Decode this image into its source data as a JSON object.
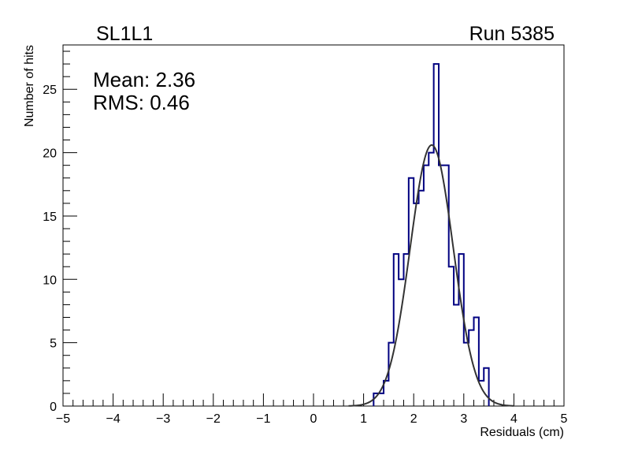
{
  "chart_data": {
    "type": "histogram",
    "title_left": "SL1L1",
    "title_right": "Run 5385",
    "xlabel": "Residuals (cm)",
    "ylabel": "Number of hits",
    "xlim": [
      -5,
      5
    ],
    "ylim": [
      0,
      28.5
    ],
    "xticks": [
      -5,
      -4,
      -3,
      -2,
      -1,
      0,
      1,
      2,
      3,
      4,
      5
    ],
    "yticks": [
      0,
      5,
      10,
      15,
      20,
      25
    ],
    "stats": {
      "mean_text": "Mean: 2.36",
      "rms_text": "RMS:  0.46"
    },
    "bin_width": 0.1,
    "bins_x_start": [
      1.2,
      1.3,
      1.4,
      1.5,
      1.6,
      1.7,
      1.8,
      1.9,
      2.0,
      2.1,
      2.2,
      2.3,
      2.4,
      2.5,
      2.6,
      2.7,
      2.8,
      2.9,
      3.0,
      3.1,
      3.2,
      3.3,
      3.4
    ],
    "counts": [
      1,
      1,
      2,
      5,
      12,
      10,
      12,
      18,
      16,
      17,
      19,
      20,
      27,
      19,
      19,
      11,
      8,
      12,
      5,
      6,
      7,
      2,
      3
    ],
    "fit": {
      "type": "gaussian",
      "amplitude": 20.6,
      "mean": 2.36,
      "sigma": 0.43
    },
    "colors": {
      "histogram": "#000080",
      "fit": "#333333",
      "axis": "#000000"
    }
  }
}
